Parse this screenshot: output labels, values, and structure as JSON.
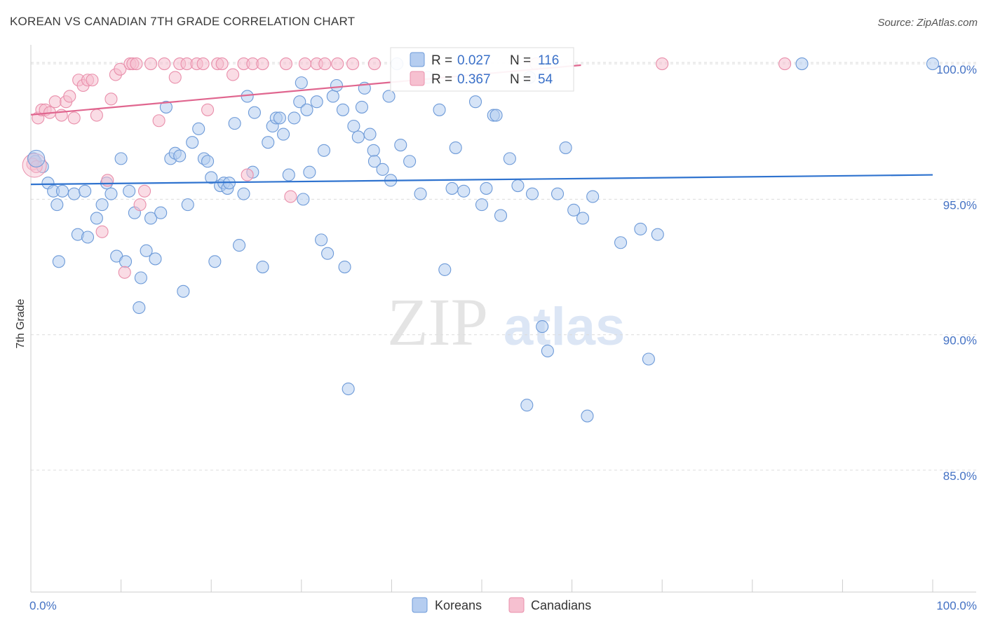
{
  "title": "KOREAN VS CANADIAN 7TH GRADE CORRELATION CHART",
  "source": "Source: ZipAtlas.com",
  "watermark": {
    "zip": "ZIP",
    "atlas": "atlas"
  },
  "colors": {
    "korean_fill": "#b5cdf0",
    "korean_stroke": "#6d9ad8",
    "korean_line": "#2f73cf",
    "canadian_fill": "#f6c0d0",
    "canadian_stroke": "#e98fab",
    "canadian_line": "#e0668f",
    "tick_label": "#4472c4",
    "grid": "#dcdcdc"
  },
  "legend_box": {
    "rows": [
      {
        "r_label": "R = ",
        "r_value": "0.027",
        "n_label": "N = ",
        "n_value": "116"
      },
      {
        "r_label": "R = ",
        "r_value": "0.367",
        "n_label": "N = ",
        "n_value": "54"
      }
    ]
  },
  "chart_data": {
    "type": "scatter",
    "xlabel": "",
    "ylabel": "7th Grade",
    "xlim": [
      0,
      100
    ],
    "ylim": [
      80.5,
      100.7
    ],
    "x_tick_labels": [
      {
        "x": 0,
        "label": "0.0%"
      },
      {
        "x": 100,
        "label": "100.0%"
      }
    ],
    "y_tick_labels": [
      {
        "y": 100,
        "label": "100.0%"
      },
      {
        "y": 95,
        "label": "95.0%"
      },
      {
        "y": 90,
        "label": "90.0%"
      },
      {
        "y": 85,
        "label": "85.0%"
      }
    ],
    "grid": true,
    "legend": "bottom-center",
    "series": [
      {
        "name": "Koreans",
        "r": 0.027,
        "n": 116,
        "trend": {
          "x": [
            0,
            100
          ],
          "y": [
            95.55,
            95.9
          ]
        },
        "points": [
          [
            0.3,
            96.5
          ],
          [
            0.5,
            96.4
          ],
          [
            1.3,
            96.2
          ],
          [
            1.9,
            95.6
          ],
          [
            2.5,
            95.3
          ],
          [
            2.9,
            94.8
          ],
          [
            3.1,
            92.7
          ],
          [
            3.5,
            95.3
          ],
          [
            4.8,
            95.2
          ],
          [
            5.2,
            93.7
          ],
          [
            6.0,
            95.3
          ],
          [
            6.3,
            93.6
          ],
          [
            7.3,
            94.3
          ],
          [
            7.9,
            94.8
          ],
          [
            8.4,
            95.6
          ],
          [
            8.9,
            95.2
          ],
          [
            9.5,
            92.9
          ],
          [
            10.0,
            96.5
          ],
          [
            10.5,
            92.7
          ],
          [
            10.9,
            95.3
          ],
          [
            11.5,
            94.5
          ],
          [
            12.2,
            92.1
          ],
          [
            12.0,
            91.0
          ],
          [
            12.8,
            93.1
          ],
          [
            13.3,
            94.3
          ],
          [
            13.8,
            92.8
          ],
          [
            14.4,
            94.5
          ],
          [
            15.0,
            98.4
          ],
          [
            15.5,
            96.5
          ],
          [
            16.0,
            96.7
          ],
          [
            16.5,
            96.6
          ],
          [
            16.9,
            91.6
          ],
          [
            17.4,
            94.8
          ],
          [
            17.9,
            97.1
          ],
          [
            18.6,
            97.6
          ],
          [
            19.2,
            96.5
          ],
          [
            19.6,
            96.4
          ],
          [
            20.0,
            95.8
          ],
          [
            20.4,
            92.7
          ],
          [
            21.0,
            95.5
          ],
          [
            21.4,
            95.6
          ],
          [
            21.8,
            95.4
          ],
          [
            22.6,
            97.8
          ],
          [
            23.1,
            93.3
          ],
          [
            23.6,
            95.2
          ],
          [
            24.0,
            98.8
          ],
          [
            24.6,
            96.0
          ],
          [
            24.8,
            98.2
          ],
          [
            25.7,
            92.5
          ],
          [
            26.3,
            97.1
          ],
          [
            26.8,
            97.7
          ],
          [
            27.2,
            98.0
          ],
          [
            27.6,
            98.0
          ],
          [
            28.0,
            97.4
          ],
          [
            28.6,
            95.9
          ],
          [
            29.2,
            98.0
          ],
          [
            29.8,
            98.6
          ],
          [
            30.0,
            99.3
          ],
          [
            30.6,
            98.3
          ],
          [
            30.9,
            96.0
          ],
          [
            31.7,
            98.6
          ],
          [
            32.2,
            93.5
          ],
          [
            32.5,
            96.8
          ],
          [
            32.9,
            93.0
          ],
          [
            33.5,
            98.8
          ],
          [
            33.9,
            99.2
          ],
          [
            34.6,
            98.3
          ],
          [
            34.8,
            92.5
          ],
          [
            35.2,
            88.0
          ],
          [
            35.8,
            97.7
          ],
          [
            36.3,
            97.3
          ],
          [
            36.7,
            98.4
          ],
          [
            37.6,
            97.4
          ],
          [
            38.0,
            96.8
          ],
          [
            38.1,
            96.4
          ],
          [
            39.0,
            96.1
          ],
          [
            39.7,
            98.8
          ],
          [
            39.9,
            95.7
          ],
          [
            40.6,
            100.0
          ],
          [
            41.0,
            97.0
          ],
          [
            42.0,
            96.4
          ],
          [
            43.2,
            95.2
          ],
          [
            45.3,
            98.3
          ],
          [
            45.9,
            92.4
          ],
          [
            46.7,
            95.4
          ],
          [
            47.1,
            96.9
          ],
          [
            48.0,
            95.3
          ],
          [
            49.3,
            98.6
          ],
          [
            50.0,
            94.8
          ],
          [
            50.5,
            95.4
          ],
          [
            51.3,
            98.1
          ],
          [
            51.6,
            98.1
          ],
          [
            52.1,
            94.4
          ],
          [
            53.1,
            96.5
          ],
          [
            54.0,
            95.5
          ],
          [
            55.0,
            87.4
          ],
          [
            55.6,
            95.2
          ],
          [
            56.7,
            90.3
          ],
          [
            57.3,
            89.4
          ],
          [
            58.4,
            95.2
          ],
          [
            59.3,
            96.9
          ],
          [
            60.2,
            94.6
          ],
          [
            61.2,
            94.3
          ],
          [
            61.7,
            87.0
          ],
          [
            62.3,
            95.1
          ],
          [
            65.4,
            93.4
          ],
          [
            67.6,
            93.9
          ],
          [
            68.5,
            89.1
          ],
          [
            69.5,
            93.7
          ],
          [
            85.5,
            100.0
          ],
          [
            100.0,
            100.0
          ],
          [
            44.0,
            99.5
          ],
          [
            55.3,
            99.5
          ],
          [
            37.0,
            99.1
          ],
          [
            22.0,
            95.6
          ],
          [
            30.2,
            95.0
          ]
        ]
      },
      {
        "name": "Canadians",
        "r": 0.367,
        "n": 54,
        "trend": {
          "x": [
            0,
            61
          ],
          "y": [
            98.12,
            99.95
          ]
        },
        "points": [
          [
            0.2,
            96.3
          ],
          [
            0.6,
            96.2
          ],
          [
            0.8,
            98.0
          ],
          [
            1.2,
            98.3
          ],
          [
            1.6,
            98.3
          ],
          [
            2.1,
            98.2
          ],
          [
            2.7,
            98.6
          ],
          [
            3.4,
            98.1
          ],
          [
            3.9,
            98.6
          ],
          [
            4.3,
            98.8
          ],
          [
            4.8,
            98.0
          ],
          [
            5.3,
            99.4
          ],
          [
            5.8,
            99.2
          ],
          [
            6.3,
            99.4
          ],
          [
            6.8,
            99.4
          ],
          [
            7.3,
            98.1
          ],
          [
            7.9,
            93.8
          ],
          [
            8.5,
            95.7
          ],
          [
            8.9,
            98.7
          ],
          [
            9.4,
            99.6
          ],
          [
            9.9,
            99.8
          ],
          [
            10.4,
            92.3
          ],
          [
            11.0,
            100.0
          ],
          [
            11.3,
            100.0
          ],
          [
            11.7,
            100.0
          ],
          [
            12.1,
            94.8
          ],
          [
            12.6,
            95.3
          ],
          [
            13.3,
            100.0
          ],
          [
            14.2,
            97.9
          ],
          [
            14.8,
            100.0
          ],
          [
            16.0,
            99.5
          ],
          [
            16.5,
            100.0
          ],
          [
            17.3,
            100.0
          ],
          [
            18.4,
            100.0
          ],
          [
            19.1,
            100.0
          ],
          [
            19.6,
            98.3
          ],
          [
            20.7,
            100.0
          ],
          [
            21.2,
            100.0
          ],
          [
            22.4,
            99.6
          ],
          [
            23.6,
            100.0
          ],
          [
            24.0,
            95.9
          ],
          [
            24.6,
            100.0
          ],
          [
            25.7,
            100.0
          ],
          [
            28.3,
            100.0
          ],
          [
            28.8,
            95.1
          ],
          [
            30.4,
            100.0
          ],
          [
            31.7,
            100.0
          ],
          [
            32.6,
            100.0
          ],
          [
            34.0,
            100.0
          ],
          [
            35.7,
            100.0
          ],
          [
            38.1,
            100.0
          ],
          [
            56.0,
            100.0
          ],
          [
            70.0,
            100.0
          ],
          [
            83.6,
            100.0
          ]
        ]
      }
    ]
  }
}
